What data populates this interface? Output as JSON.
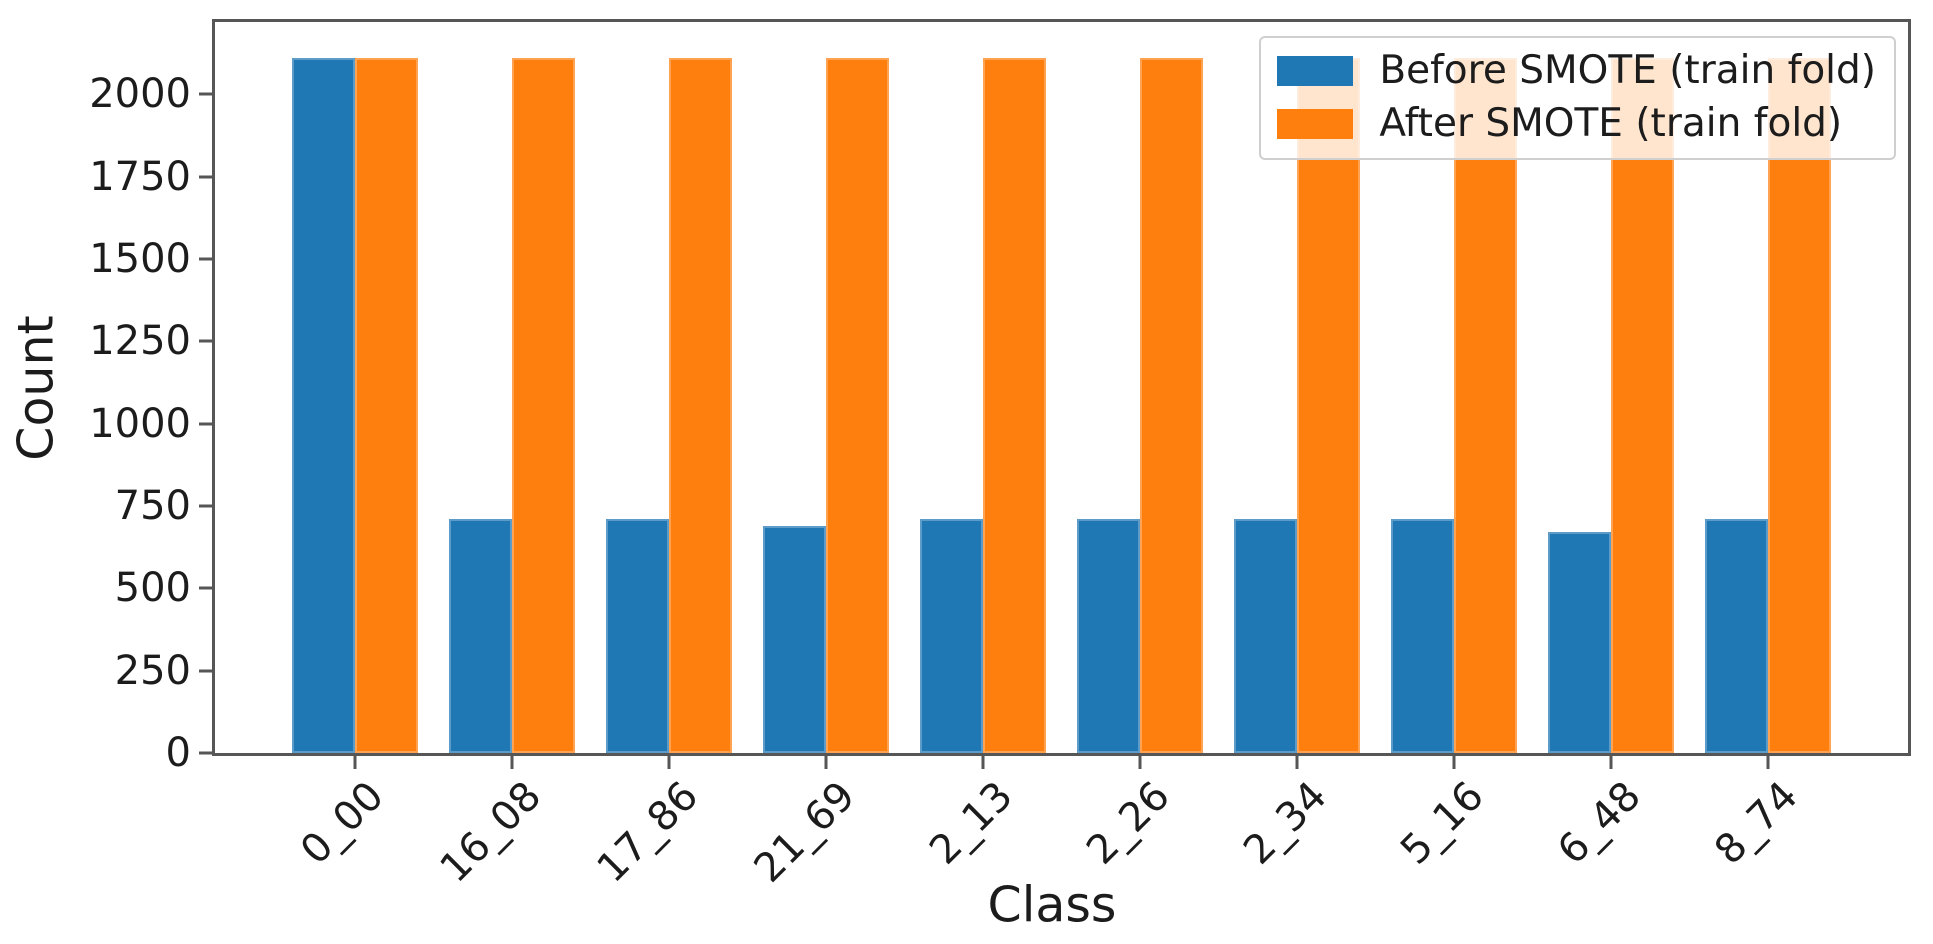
{
  "chart_data": {
    "type": "bar",
    "title": "",
    "xlabel": "Class",
    "ylabel": "Count",
    "categories": [
      "0_00",
      "16_08",
      "17_86",
      "21_69",
      "2_13",
      "2_26",
      "2_34",
      "5_16",
      "6_48",
      "8_74"
    ],
    "series": [
      {
        "name": "Before SMOTE (train fold)",
        "color": "#1f77b4",
        "values": [
          2110,
          710,
          710,
          690,
          710,
          710,
          710,
          710,
          670,
          710
        ]
      },
      {
        "name": "After SMOTE (train fold)",
        "color": "#ff7f0e",
        "values": [
          2110,
          2110,
          2110,
          2110,
          2110,
          2110,
          2110,
          2110,
          2110,
          2110
        ]
      }
    ],
    "ylim": [
      0,
      2220
    ],
    "yticks": [
      0,
      250,
      500,
      750,
      1000,
      1250,
      1500,
      1750,
      2000
    ],
    "grid": false,
    "legend_position": "upper right",
    "bar_width_units": 0.4,
    "x_margin_units": 0.89,
    "xtick_rotation_deg": 45,
    "colors": {
      "spine": "#565656",
      "text": "#1c1c1c",
      "legend_border": "#cfcfcf"
    }
  }
}
